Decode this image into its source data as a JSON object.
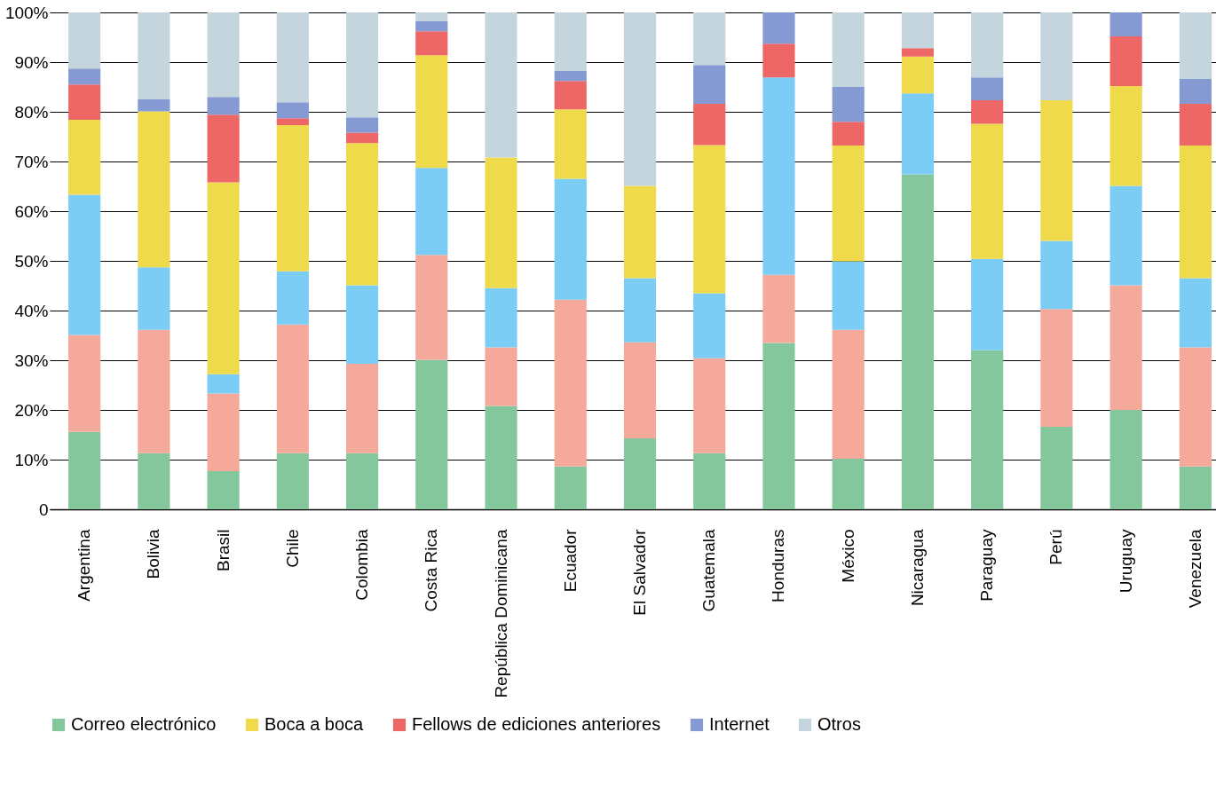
{
  "chart_data": {
    "type": "bar",
    "stacked": true,
    "grid": "y",
    "legend": "bottom",
    "categories": [
      "Argentina",
      "Bolivia",
      "Brasil",
      "Chile",
      "Colombia",
      "Costa Rica",
      "República Dominicana",
      "Ecuador",
      "El Salvador",
      "Guatemala",
      "Honduras",
      "México",
      "Nicaragua",
      "Paraguay",
      "Perú",
      "Uruguay",
      "Venezuela"
    ],
    "ylim": [
      0,
      100
    ],
    "yticks": [
      {
        "value": 0,
        "label": "0"
      },
      {
        "value": 10,
        "label": "10%"
      },
      {
        "value": 20,
        "label": "20%"
      },
      {
        "value": 30,
        "label": "30%"
      },
      {
        "value": 40,
        "label": "40%"
      },
      {
        "value": 50,
        "label": "50%"
      },
      {
        "value": 60,
        "label": "60%"
      },
      {
        "value": 70,
        "label": "70%"
      },
      {
        "value": 80,
        "label": "80%"
      },
      {
        "value": 90,
        "label": "90%"
      },
      {
        "value": 100,
        "label": "100%"
      }
    ],
    "series": [
      {
        "name": "Correo electrónico",
        "color": "#85c79d",
        "values": [
          15.6,
          11.3,
          7.7,
          11.3,
          11.3,
          30.1,
          20.8,
          8.6,
          14.3,
          11.3,
          33.5,
          10.2,
          67.4,
          32.0,
          16.6,
          20.0,
          8.6
        ]
      },
      {
        "color": "#f4a99b",
        "values": [
          19.5,
          24.8,
          15.6,
          25.9,
          18.0,
          21.1,
          11.8,
          33.6,
          19.3,
          19.1,
          13.7,
          25.9,
          0,
          0,
          23.7,
          25.1,
          24.0
        ]
      },
      {
        "color": "#7ccdf5",
        "values": [
          28.2,
          12.6,
          3.9,
          10.7,
          15.8,
          17.5,
          11.9,
          24.3,
          12.9,
          13.1,
          39.7,
          13.8,
          16.3,
          18.4,
          13.7,
          20.0,
          13.9
        ]
      },
      {
        "name": "Boca a boca",
        "color": "#eeda4a",
        "values": [
          15.1,
          31.4,
          38.6,
          29.4,
          28.6,
          22.7,
          26.3,
          14.0,
          18.6,
          29.8,
          0,
          23.3,
          7.4,
          27.2,
          28.3,
          20.1,
          26.7
        ]
      },
      {
        "name": "Fellows de ediciones anteriores",
        "color": "#ee6767",
        "values": [
          7.1,
          0,
          13.6,
          1.4,
          2.1,
          4.8,
          0,
          5.7,
          0,
          8.3,
          6.8,
          4.8,
          1.7,
          4.7,
          0,
          10.0,
          8.4
        ]
      },
      {
        "name": "Internet",
        "color": "#8599d3",
        "values": [
          3.2,
          2.4,
          3.6,
          3.2,
          3.1,
          2.0,
          0,
          2.0,
          0,
          7.8,
          6.3,
          7.0,
          0,
          4.6,
          0,
          4.8,
          5.0
        ]
      },
      {
        "name": "Otros",
        "color": "#c5d5de",
        "values": [
          11.3,
          17.5,
          17.0,
          18.1,
          21.1,
          1.8,
          29.2,
          11.8,
          34.9,
          10.6,
          0,
          15.0,
          7.2,
          13.1,
          17.7,
          0,
          13.4
        ]
      }
    ]
  }
}
